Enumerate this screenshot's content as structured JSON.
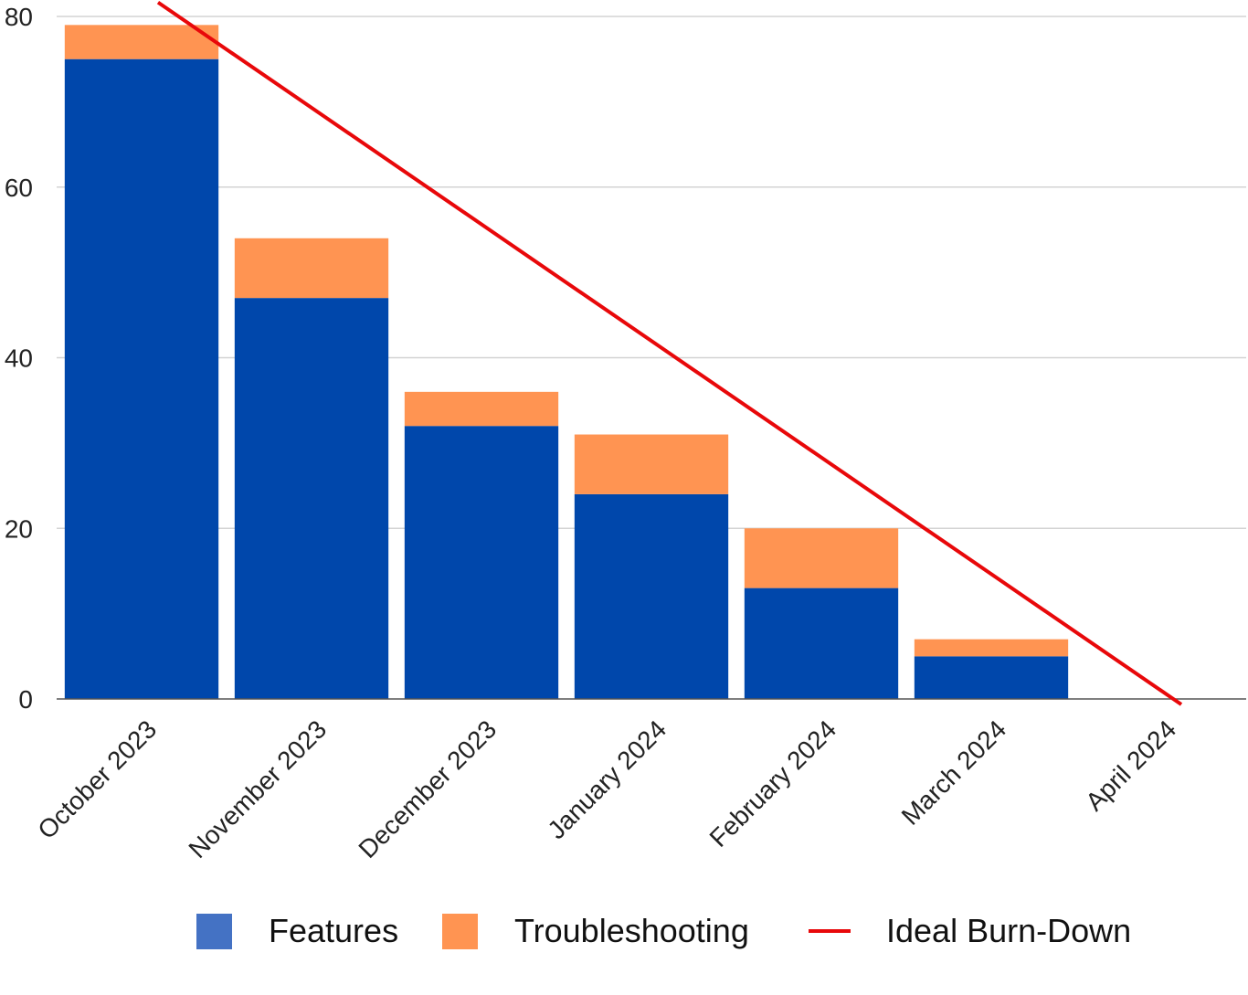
{
  "chart_data": {
    "type": "bar",
    "stacked": true,
    "categories": [
      "October 2023",
      "November 2023",
      "December 2023",
      "January 2024",
      "February 2024",
      "March 2024",
      "April 2024"
    ],
    "series": [
      {
        "name": "Features",
        "type": "bar",
        "color": "#0047AB",
        "legend_color": "#4472C4",
        "values": [
          75,
          47,
          32,
          24,
          13,
          5,
          0
        ]
      },
      {
        "name": "Troubleshooting",
        "type": "bar",
        "color": "#FF9452",
        "values": [
          4,
          7,
          4,
          7,
          7,
          2,
          0
        ]
      },
      {
        "name": "Ideal Burn-Down",
        "type": "line",
        "color": "#E8080A",
        "start": {
          "x": "October 2023",
          "y": 81
        },
        "end": {
          "x": "April 2024",
          "y": 0
        }
      }
    ],
    "ylim": [
      0,
      80
    ],
    "yticks": [
      0,
      20,
      40,
      60,
      80
    ],
    "grid": true,
    "legend_position": "bottom",
    "title": "",
    "xlabel": "",
    "ylabel": ""
  }
}
